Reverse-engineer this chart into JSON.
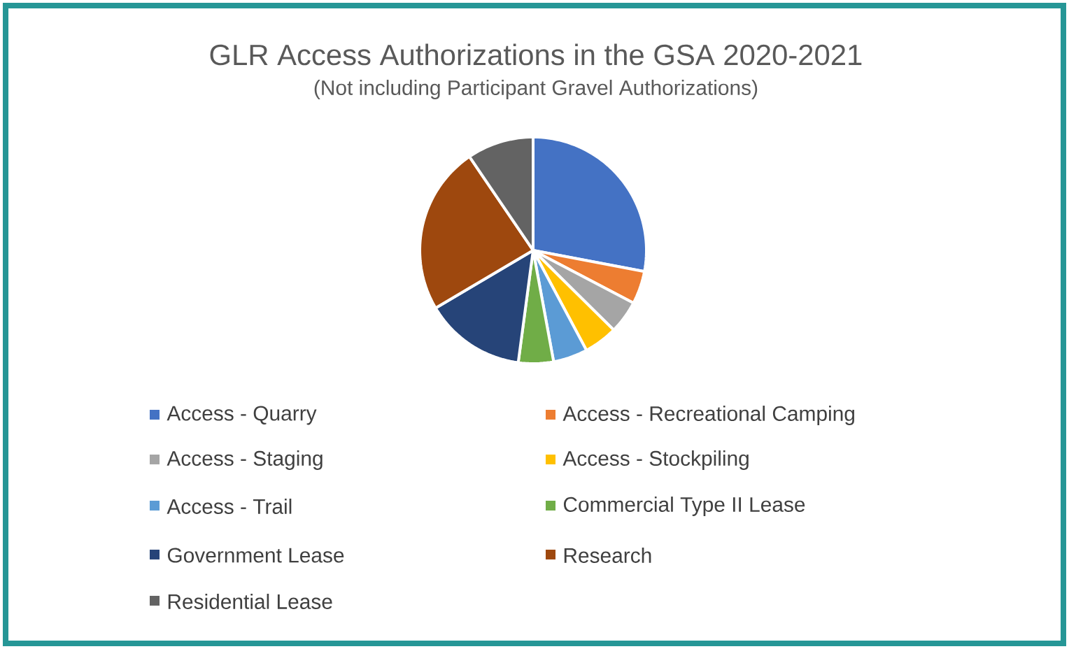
{
  "chart_data": {
    "type": "pie",
    "title": "GLR Access Authorizations in the GSA 2020-2021",
    "subtitle": "(Not including Participant Gravel Authorizations)",
    "categories": [
      "Access - Quarry",
      "Access - Recreational Camping",
      "Access - Staging",
      "Access - Stockpiling",
      "Access - Trail",
      "Commercial Type II Lease",
      "Government Lease",
      "Research",
      "Residential Lease"
    ],
    "values": [
      28,
      4.7,
      4.7,
      4.8,
      4.9,
      5,
      14.4,
      24,
      9.5
    ],
    "colors": [
      "#4472c4",
      "#ed7d31",
      "#a5a5a5",
      "#ffc000",
      "#5b9bd5",
      "#70ad47",
      "#264478",
      "#9e480e",
      "#636363"
    ],
    "legend": "bottom"
  }
}
